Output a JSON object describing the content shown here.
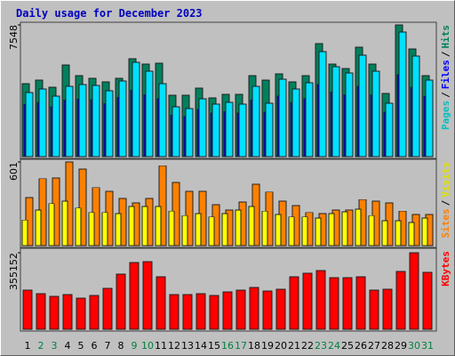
{
  "chart_data": {
    "type": "bar",
    "title": "Daily usage for December 2023",
    "categories": [
      "1",
      "2",
      "3",
      "4",
      "5",
      "6",
      "7",
      "8",
      "9",
      "10",
      "11",
      "12",
      "13",
      "14",
      "15",
      "16",
      "17",
      "18",
      "19",
      "20",
      "21",
      "22",
      "23",
      "24",
      "25",
      "26",
      "27",
      "28",
      "29",
      "30",
      "31"
    ],
    "category_colors": [
      "#000000",
      "#008040",
      "#008040",
      "#000000",
      "#000000",
      "#000000",
      "#000000",
      "#000000",
      "#008040",
      "#008040",
      "#000000",
      "#000000",
      "#000000",
      "#000000",
      "#000000",
      "#008040",
      "#008040",
      "#000000",
      "#000000",
      "#000000",
      "#000000",
      "#000000",
      "#008040",
      "#008040",
      "#000000",
      "#000000",
      "#000000",
      "#000000",
      "#000000",
      "#008040",
      "#008040"
    ],
    "legend_separator": "/",
    "panels": [
      {
        "ylim": [
          0,
          7548
        ],
        "yticks": [
          7548
        ],
        "series": [
          {
            "name": "Pages",
            "color": "#00e0ff",
            "label_color": "#00c0c0",
            "values": [
              3672,
              3876,
              3468,
              4029,
              4131,
              4080,
              3774,
              4335,
              5406,
              4896,
              4182,
              2856,
              2754,
              3315,
              3009,
              3111,
              3009,
              4029,
              3060,
              4437,
              3876,
              4233,
              6018,
              5151,
              4794,
              5814,
              4896,
              3060,
              7140,
              5763,
              4386
            ]
          },
          {
            "name": "Files",
            "color": "#0000ff",
            "label_color": "#0000ff",
            "values": [
              2990,
              3110,
              2860,
              3240,
              3300,
              3270,
              3050,
              3400,
              3800,
              3550,
              3330,
              2380,
              2310,
              2720,
              2500,
              2590,
              2500,
              3240,
              2550,
              3480,
              3110,
              3330,
              4150,
              3700,
              3560,
              4050,
              3550,
              2550,
              4700,
              4000,
              3450
            ]
          },
          {
            "name": "Hits",
            "color": "#00805c",
            "label_color": "#00805c",
            "values": [
              4182,
              4386,
              3978,
              5253,
              4641,
              4488,
              4284,
              4488,
              5610,
              5304,
              5355,
              3519,
              3519,
              3927,
              3366,
              3570,
              3570,
              4641,
              4386,
              4743,
              4284,
              4641,
              6477,
              5304,
              5049,
              6273,
              5304,
              3621,
              7548,
              6171,
              4641
            ]
          }
        ]
      },
      {
        "ylim": [
          0,
          601
        ],
        "yticks": [
          601
        ],
        "series": [
          {
            "name": "Sites",
            "color": "#ff8000",
            "label_color": "#ff8000",
            "values": [
              345,
              480,
              486,
              601,
              550,
              416,
              390,
              339,
              307,
              339,
              575,
              454,
              390,
              390,
              294,
              256,
              313,
              441,
              384,
              320,
              288,
              237,
              230,
              256,
              256,
              332,
              320,
              307,
              249,
              224,
              224
            ]
          },
          {
            "name": "Visits",
            "color": "#ffff00",
            "label_color": "#e0e000",
            "values": [
              185,
              256,
              301,
              320,
              269,
              237,
              237,
              230,
              281,
              281,
              281,
              249,
              217,
              230,
              205,
              230,
              256,
              281,
              249,
              224,
              205,
              205,
              198,
              230,
              243,
              262,
              217,
              179,
              179,
              166,
              198
            ]
          }
        ]
      },
      {
        "ylim": [
          0,
          355152
        ],
        "yticks": [
          355152
        ],
        "series": [
          {
            "name": "KBytes",
            "color": "#ff0000",
            "label_color": "#ff0000",
            "values": [
              181707,
              165188,
              152799,
              161058,
              144540,
              156929,
              189966,
              256041,
              309728,
              313857,
              243652,
              161058,
              161058,
              165188,
              156929,
              173447,
              181707,
              194096,
              177577,
              185837,
              243652,
              260171,
              272561,
              239523,
              239523,
              243652,
              181707,
              185837,
              268431,
              355152,
              264302
            ]
          }
        ]
      }
    ]
  }
}
